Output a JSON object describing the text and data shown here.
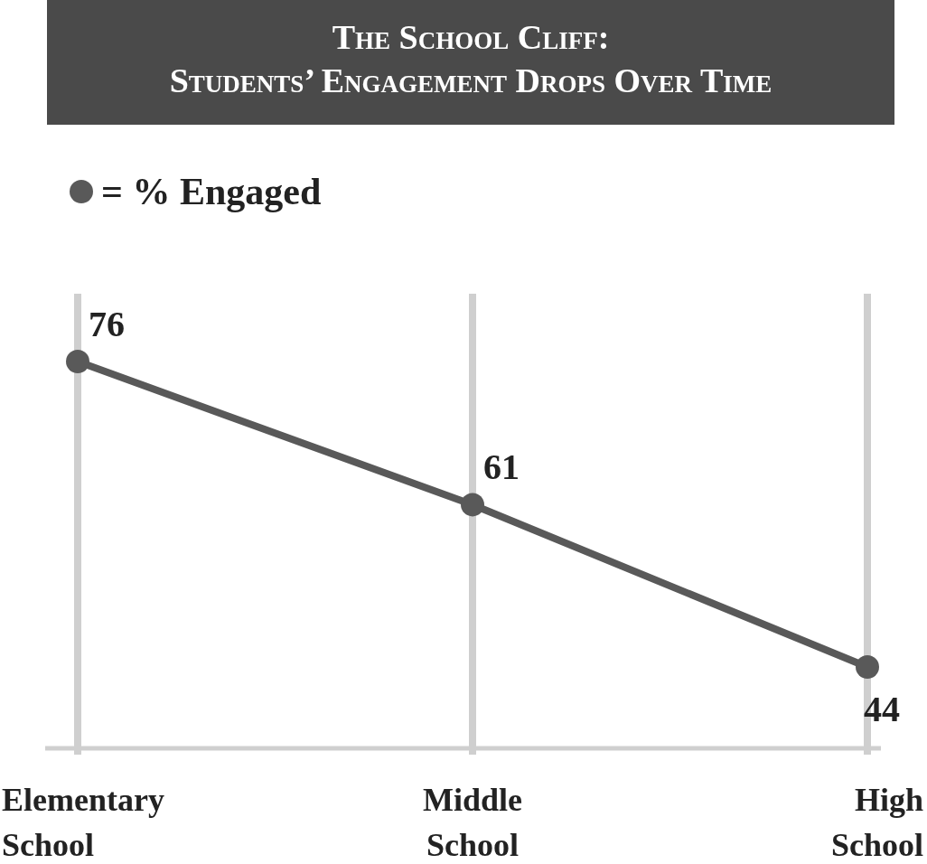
{
  "chart_data": {
    "type": "line",
    "title": "The School Cliff:\nStudents’ Engagement Drops Over Time",
    "categories": [
      "Elementary\nSchool",
      "Middle\nSchool",
      "High\nSchool"
    ],
    "series": [
      {
        "name": "= % Engaged",
        "color": "#595959",
        "values": [
          76,
          61,
          44
        ]
      }
    ],
    "data_labels": true,
    "grid": "x",
    "legend": "top left",
    "marker": "circle",
    "line_style": "solid"
  }
}
